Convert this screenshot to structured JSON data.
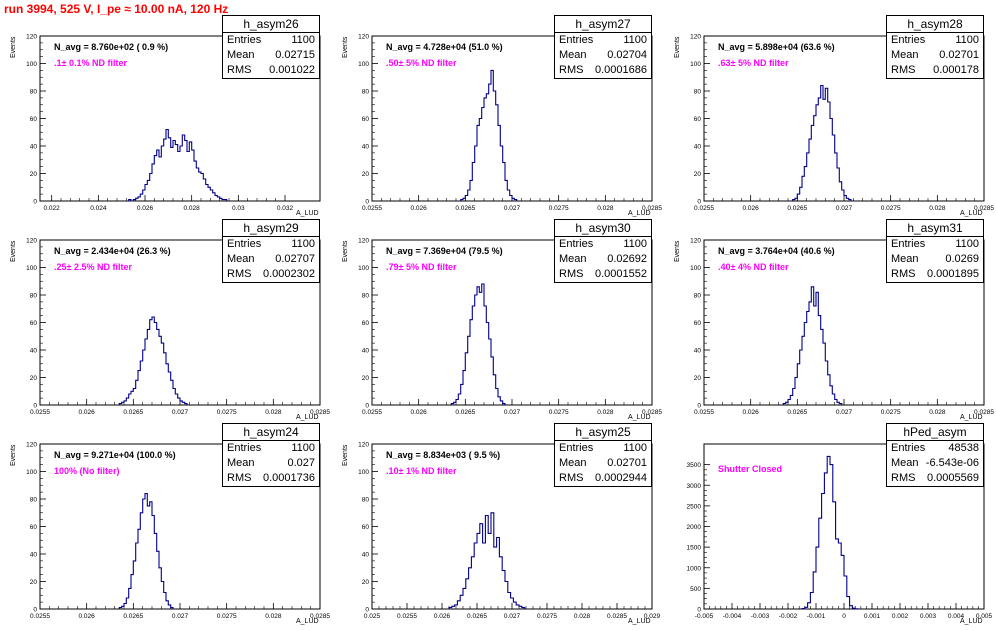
{
  "header": {
    "title": "run 3994,   525 V, I_pe ≈ 10.00 nA, 120 Hz"
  },
  "colors": {
    "title": "#ff0000",
    "histogram": "#00008b",
    "filter_label": "#ff00ff"
  },
  "chart_data": [
    {
      "type": "histogram",
      "name": "h_asym26",
      "ylabel": "Events",
      "xlabel": "A_LUD",
      "xlim": [
        0.0215,
        0.0335
      ],
      "ylim": [
        0,
        120
      ],
      "xticks": [
        0.022,
        0.024,
        0.026,
        0.028,
        0.03,
        0.032
      ],
      "xtick_labels": [
        "0.022",
        "0.024",
        "0.026",
        "0.028",
        "0.03",
        "0.032"
      ],
      "yticks": [
        0,
        20,
        40,
        60,
        80,
        100,
        120
      ],
      "stats": {
        "entries": "1100",
        "mean": "0.02715",
        "rms": "0.001022"
      },
      "n_avg": "N_avg = 8.760e+02 ( 0.9 %)",
      "filter_label": ".1± 0.1% ND filter",
      "bin_start": 0.0253,
      "bin_width": 0.0001,
      "counts": [
        1,
        0,
        1,
        2,
        3,
        5,
        8,
        12,
        15,
        20,
        27,
        33,
        37,
        32,
        40,
        45,
        52,
        46,
        39,
        44,
        41,
        36,
        40,
        48,
        44,
        36,
        43,
        37,
        29,
        24,
        21,
        20,
        16,
        12,
        10,
        8,
        6,
        4,
        3,
        2,
        1,
        1
      ]
    },
    {
      "type": "histogram",
      "name": "h_asym27",
      "ylabel": "Events",
      "xlabel": "A_LUD",
      "xlim": [
        0.0255,
        0.0285
      ],
      "ylim": [
        0,
        120
      ],
      "xticks": [
        0.0255,
        0.026,
        0.0265,
        0.027,
        0.0275,
        0.028,
        0.0285
      ],
      "xtick_labels": [
        "0.0255",
        "0.026",
        "0.0265",
        "0.027",
        "0.0275",
        "0.028",
        "0.0285"
      ],
      "yticks": [
        0,
        20,
        40,
        60,
        80,
        100,
        120
      ],
      "stats": {
        "entries": "1100",
        "mean": "0.02704",
        "rms": "0.0001686"
      },
      "n_avg": "N_avg = 4.728e+04 (51.0 %)",
      "filter_label": ".50± 5% ND filter",
      "bin_start": 0.02645,
      "bin_width": 2.5e-05,
      "counts": [
        1,
        2,
        4,
        8,
        15,
        28,
        40,
        55,
        60,
        68,
        75,
        78,
        85,
        95,
        80,
        70,
        55,
        40,
        28,
        15,
        8,
        4,
        2,
        1
      ]
    },
    {
      "type": "histogram",
      "name": "h_asym28",
      "ylabel": "Events",
      "xlabel": "A_LUD",
      "xlim": [
        0.0255,
        0.0285
      ],
      "ylim": [
        0,
        120
      ],
      "xticks": [
        0.0255,
        0.026,
        0.0265,
        0.027,
        0.0275,
        0.028,
        0.0285
      ],
      "xtick_labels": [
        "0.0255",
        "0.026",
        "0.0265",
        "0.027",
        "0.0275",
        "0.028",
        "0.0285"
      ],
      "yticks": [
        0,
        20,
        40,
        60,
        80,
        100,
        120
      ],
      "stats": {
        "entries": "1100",
        "mean": "0.02701",
        "rms": "0.000178"
      },
      "n_avg": "N_avg = 5.898e+04 (63.6 %)",
      "filter_label": ".63± 5% ND filter",
      "bin_start": 0.02645,
      "bin_width": 2.5e-05,
      "counts": [
        1,
        2,
        5,
        10,
        18,
        25,
        35,
        45,
        55,
        62,
        70,
        75,
        84,
        74,
        82,
        72,
        60,
        48,
        35,
        24,
        14,
        8,
        4,
        2,
        1
      ]
    },
    {
      "type": "histogram",
      "name": "h_asym29",
      "ylabel": "Events",
      "xlabel": "A_LUD",
      "xlim": [
        0.0255,
        0.0285
      ],
      "ylim": [
        0,
        120
      ],
      "xticks": [
        0.0255,
        0.026,
        0.0265,
        0.027,
        0.0275,
        0.028,
        0.0285
      ],
      "xtick_labels": [
        "0.0255",
        "0.026",
        "0.0265",
        "0.027",
        "0.0275",
        "0.028",
        "0.0285"
      ],
      "yticks": [
        0,
        20,
        40,
        60,
        80,
        100,
        120
      ],
      "stats": {
        "entries": "1100",
        "mean": "0.02707",
        "rms": "0.0002302"
      },
      "n_avg": "N_avg = 2.434e+04 (26.3 %)",
      "filter_label": ".25± 2.5% ND filter",
      "bin_start": 0.02635,
      "bin_width": 2.5e-05,
      "counts": [
        1,
        2,
        3,
        5,
        8,
        10,
        12,
        18,
        25,
        32,
        40,
        48,
        55,
        62,
        64,
        60,
        55,
        50,
        45,
        38,
        30,
        24,
        18,
        12,
        8,
        5,
        3,
        2,
        1
      ]
    },
    {
      "type": "histogram",
      "name": "h_asym30",
      "ylabel": "Events",
      "xlabel": "A_LUD",
      "xlim": [
        0.0255,
        0.0285
      ],
      "ylim": [
        0,
        120
      ],
      "xticks": [
        0.0255,
        0.026,
        0.0265,
        0.027,
        0.0275,
        0.028,
        0.0285
      ],
      "xtick_labels": [
        "0.0255",
        "0.026",
        "0.0265",
        "0.027",
        "0.0275",
        "0.028",
        "0.0285"
      ],
      "yticks": [
        0,
        20,
        40,
        60,
        80,
        100,
        120
      ],
      "stats": {
        "entries": "1100",
        "mean": "0.02692",
        "rms": "0.0001552"
      },
      "n_avg": "N_avg = 7.369e+04 (79.5 %)",
      "filter_label": ".79± 5% ND filter",
      "bin_start": 0.02635,
      "bin_width": 2.5e-05,
      "counts": [
        1,
        2,
        4,
        8,
        15,
        25,
        38,
        50,
        62,
        72,
        80,
        86,
        82,
        88,
        72,
        60,
        48,
        35,
        22,
        12,
        6,
        3,
        1
      ]
    },
    {
      "type": "histogram",
      "name": "h_asym31",
      "ylabel": "Events",
      "xlabel": "A_LUD",
      "xlim": [
        0.0255,
        0.0285
      ],
      "ylim": [
        0,
        120
      ],
      "xticks": [
        0.0255,
        0.026,
        0.0265,
        0.027,
        0.0275,
        0.028,
        0.0285
      ],
      "xtick_labels": [
        "0.0255",
        "0.026",
        "0.0265",
        "0.027",
        "0.0275",
        "0.028",
        "0.0285"
      ],
      "yticks": [
        0,
        20,
        40,
        60,
        80,
        100,
        120
      ],
      "stats": {
        "entries": "1100",
        "mean": "0.0269",
        "rms": "0.0001895"
      },
      "n_avg": "N_avg = 3.764e+04 (40.6 %)",
      "filter_label": ".40± 4% ND filter",
      "bin_start": 0.02635,
      "bin_width": 2.5e-05,
      "counts": [
        1,
        2,
        4,
        7,
        12,
        20,
        30,
        40,
        50,
        60,
        68,
        75,
        86,
        72,
        82,
        65,
        55,
        45,
        32,
        22,
        14,
        8,
        4,
        2,
        1
      ]
    },
    {
      "type": "histogram",
      "name": "h_asym24",
      "ylabel": "Events",
      "xlabel": "A_LUD",
      "xlim": [
        0.0255,
        0.0285
      ],
      "ylim": [
        0,
        120
      ],
      "xticks": [
        0.0255,
        0.026,
        0.0265,
        0.027,
        0.0275,
        0.028,
        0.0285
      ],
      "xtick_labels": [
        "0.0255",
        "0.026",
        "0.0265",
        "0.027",
        "0.0275",
        "0.028",
        "0.0285"
      ],
      "yticks": [
        0,
        20,
        40,
        60,
        80,
        100,
        120
      ],
      "stats": {
        "entries": "1100",
        "mean": "0.027",
        "rms": "0.0001736"
      },
      "n_avg": "N_avg = 9.271e+04 (100.0 %)",
      "filter_label": "100% (No filter)",
      "bin_start": 0.02635,
      "bin_width": 2.5e-05,
      "counts": [
        1,
        2,
        4,
        8,
        15,
        25,
        35,
        48,
        58,
        70,
        80,
        84,
        75,
        78,
        68,
        55,
        42,
        30,
        20,
        12,
        6,
        3,
        1
      ]
    },
    {
      "type": "histogram",
      "name": "h_asym25",
      "ylabel": "Events",
      "xlabel": "A_LUD",
      "xlim": [
        0.025,
        0.029
      ],
      "ylim": [
        0,
        120
      ],
      "xticks": [
        0.025,
        0.0255,
        0.026,
        0.0265,
        0.027,
        0.0275,
        0.028,
        0.0285,
        0.029
      ],
      "xtick_labels": [
        "0.025",
        "0.0255",
        "0.026",
        "0.0265",
        "0.027",
        "0.0275",
        "0.028",
        "0.0285",
        "0.029"
      ],
      "yticks": [
        0,
        20,
        40,
        60,
        80,
        100,
        120
      ],
      "stats": {
        "entries": "1100",
        "mean": "0.02701",
        "rms": "0.0002944"
      },
      "n_avg": "N_avg = 8.834e+03 ( 9.5 %)",
      "filter_label": ".10± 1% ND filter",
      "bin_start": 0.0261,
      "bin_width": 4e-05,
      "counts": [
        1,
        2,
        3,
        6,
        10,
        15,
        22,
        30,
        38,
        48,
        55,
        62,
        48,
        68,
        55,
        70,
        45,
        52,
        38,
        28,
        20,
        12,
        8,
        5,
        3,
        2,
        1
      ]
    },
    {
      "type": "histogram",
      "name": "hPed_asym",
      "ylabel": "",
      "xlabel": "A_LUD",
      "xlim": [
        -0.005,
        0.005
      ],
      "ylim": [
        0,
        4000
      ],
      "xticks": [
        -0.005,
        -0.004,
        -0.003,
        -0.002,
        -0.001,
        0,
        0.001,
        0.002,
        0.003,
        0.004,
        0.005
      ],
      "xtick_labels": [
        "-0.005",
        "-0.004",
        "-0.003",
        "-0.002",
        "-0.001",
        "0",
        "0.001",
        "0.002",
        "0.003",
        "0.004",
        "0.005"
      ],
      "yticks": [
        0,
        500,
        1000,
        1500,
        2000,
        2500,
        3000,
        3500
      ],
      "stats": {
        "entries": "48538",
        "mean": "-6.543e-06",
        "rms": "0.0005569"
      },
      "n_avg": "",
      "filter_label": "Shutter Closed",
      "bin_start": -0.0015,
      "bin_width": 0.0001,
      "counts": [
        10,
        40,
        150,
        400,
        900,
        1500,
        2200,
        2800,
        3300,
        3700,
        3500,
        2600,
        1700,
        1600,
        1300,
        800,
        300,
        80,
        20,
        5
      ]
    }
  ]
}
